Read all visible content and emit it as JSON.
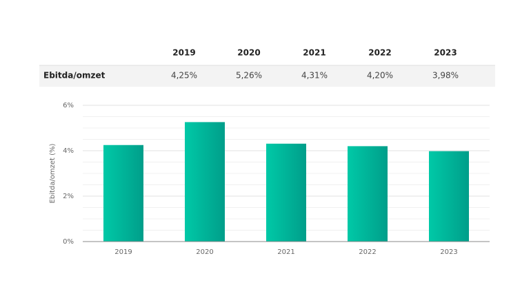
{
  "table": {
    "columns": [
      "2019",
      "2020",
      "2021",
      "2022",
      "2023"
    ],
    "rows": [
      {
        "label": "Ebitda/omzet",
        "cells": [
          "4,25%",
          "5,26%",
          "4,31%",
          "4,20%",
          "3,98%"
        ]
      }
    ]
  },
  "chart_data": {
    "type": "bar",
    "y_label": "Ebitda/omzet (%)",
    "categories": [
      "2019",
      "2020",
      "2021",
      "2022",
      "2023"
    ],
    "values": [
      4.25,
      5.26,
      4.31,
      4.2,
      3.98
    ],
    "color": "#00bf9f",
    "ylim": [
      0,
      6
    ],
    "yticks": [
      {
        "value": 0,
        "label": "0%"
      },
      {
        "value": 2,
        "label": "2%"
      },
      {
        "value": 4,
        "label": "4%"
      },
      {
        "value": 6,
        "label": "6%"
      }
    ],
    "minor_yticks": [
      0.5,
      1,
      1.5,
      2.5,
      3,
      3.5,
      4.5,
      5,
      5.5
    ],
    "grid": true
  }
}
